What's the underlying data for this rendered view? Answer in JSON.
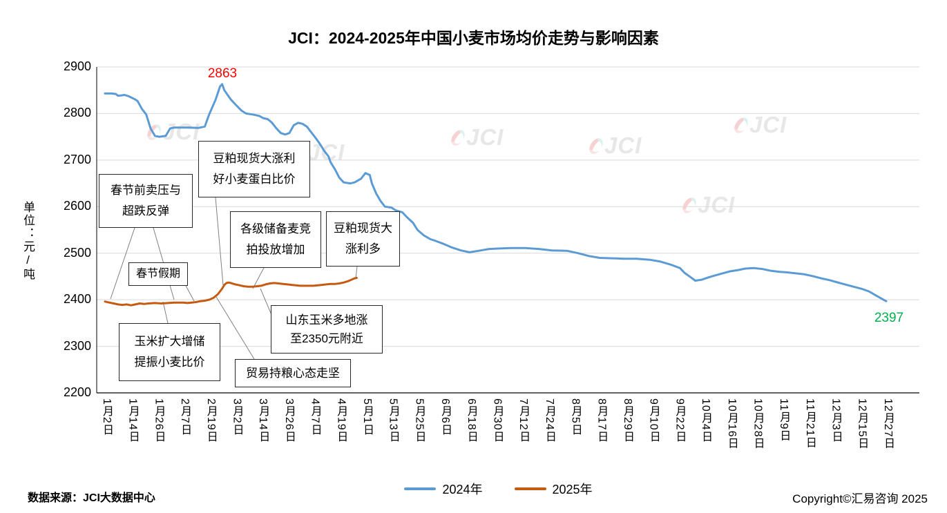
{
  "title": "JCI：2024-2025年中国小麦市场均价走势与影响因素",
  "y_axis_title": "单位：元/吨",
  "watermark_text": "JCI",
  "footer": {
    "source": "数据来源：JCI大数据中心",
    "copyright": "Copyright©汇易咨询 2025"
  },
  "legend": [
    {
      "label": "2024年",
      "color": "#5B9BD5"
    },
    {
      "label": "2025年",
      "color": "#C55A11"
    }
  ],
  "point_labels": [
    {
      "text": "2863",
      "color": "#FF0000"
    },
    {
      "text": "2397",
      "color": "#00B050"
    }
  ],
  "annotations": [
    {
      "line1": "春节前卖压与",
      "line2": "超跌反弹"
    },
    {
      "line1": "春节假期",
      "line2": ""
    },
    {
      "line1": "豆粕现货大涨利",
      "line2": "好小麦蛋白比价"
    },
    {
      "line1": "各级储备麦竞",
      "line2": "拍投放增加"
    },
    {
      "line1": "豆粕现货大",
      "line2": "涨利多"
    },
    {
      "line1": "玉米扩大增储",
      "line2": "提振小麦比价"
    },
    {
      "line1": "山东玉米多地涨",
      "line2": "至2350元附近"
    },
    {
      "line1": "贸易持粮心态走坚",
      "line2": ""
    }
  ],
  "chart_data": {
    "type": "line",
    "title": "JCI：2024-2025年中国小麦市场均价走势与影响因素",
    "xlabel": "",
    "ylabel": "单位：元/吨",
    "ylim": [
      2200,
      2900
    ],
    "ytick_step": 100,
    "grid": true,
    "legend_position": "bottom",
    "tick_day_interval": 12,
    "categories": [
      "1月2日",
      "1月14日",
      "1月26日",
      "2月7日",
      "2月19日",
      "3月2日",
      "3月14日",
      "3月26日",
      "4月7日",
      "4月19日",
      "5月1日",
      "5月13日",
      "5月25日",
      "6月6日",
      "6月18日",
      "6月30日",
      "7月12日",
      "7月24日",
      "8月5日",
      "8月17日",
      "8月29日",
      "9月10日",
      "9月22日",
      "10月4日",
      "10月16日",
      "10月28日",
      "11月9日",
      "11月21日",
      "12月3日",
      "12月15日",
      "12月27日"
    ],
    "series": [
      {
        "name": "2024年",
        "color": "#5B9BD5",
        "points": [
          [
            0,
            2843
          ],
          [
            3,
            2843
          ],
          [
            5,
            2842
          ],
          [
            6,
            2838
          ],
          [
            9,
            2840
          ],
          [
            11,
            2837
          ],
          [
            14,
            2830
          ],
          [
            15,
            2827
          ],
          [
            17,
            2810
          ],
          [
            19,
            2798
          ],
          [
            21,
            2768
          ],
          [
            23,
            2752
          ],
          [
            25,
            2750
          ],
          [
            28,
            2752
          ],
          [
            30,
            2768
          ],
          [
            32,
            2770
          ],
          [
            38,
            2770
          ],
          [
            43,
            2769
          ],
          [
            46,
            2772
          ],
          [
            48,
            2798
          ],
          [
            51,
            2830
          ],
          [
            53,
            2858
          ],
          [
            54,
            2863
          ],
          [
            55,
            2850
          ],
          [
            58,
            2830
          ],
          [
            60,
            2820
          ],
          [
            63,
            2806
          ],
          [
            65,
            2800
          ],
          [
            68,
            2798
          ],
          [
            71,
            2795
          ],
          [
            73,
            2790
          ],
          [
            75,
            2788
          ],
          [
            77,
            2780
          ],
          [
            79,
            2768
          ],
          [
            81,
            2758
          ],
          [
            83,
            2755
          ],
          [
            85,
            2758
          ],
          [
            87,
            2775
          ],
          [
            89,
            2780
          ],
          [
            91,
            2778
          ],
          [
            93,
            2772
          ],
          [
            95,
            2760
          ],
          [
            97,
            2748
          ],
          [
            99,
            2735
          ],
          [
            101,
            2720
          ],
          [
            103,
            2708
          ],
          [
            104,
            2695
          ],
          [
            106,
            2680
          ],
          [
            108,
            2662
          ],
          [
            110,
            2652
          ],
          [
            113,
            2650
          ],
          [
            115,
            2652
          ],
          [
            118,
            2660
          ],
          [
            120,
            2672
          ],
          [
            122,
            2668
          ],
          [
            123,
            2650
          ],
          [
            125,
            2628
          ],
          [
            127,
            2612
          ],
          [
            129,
            2600
          ],
          [
            132,
            2598
          ],
          [
            134,
            2592
          ],
          [
            137,
            2588
          ],
          [
            139,
            2578
          ],
          [
            142,
            2565
          ],
          [
            144,
            2550
          ],
          [
            147,
            2538
          ],
          [
            150,
            2530
          ],
          [
            152,
            2527
          ],
          [
            156,
            2520
          ],
          [
            160,
            2512
          ],
          [
            164,
            2506
          ],
          [
            168,
            2502
          ],
          [
            172,
            2505
          ],
          [
            177,
            2509
          ],
          [
            181,
            2510
          ],
          [
            187,
            2511
          ],
          [
            194,
            2511
          ],
          [
            200,
            2509
          ],
          [
            206,
            2506
          ],
          [
            213,
            2505
          ],
          [
            218,
            2500
          ],
          [
            223,
            2494
          ],
          [
            228,
            2490
          ],
          [
            234,
            2489
          ],
          [
            239,
            2488
          ],
          [
            245,
            2488
          ],
          [
            251,
            2486
          ],
          [
            256,
            2482
          ],
          [
            261,
            2475
          ],
          [
            265,
            2468
          ],
          [
            267,
            2458
          ],
          [
            270,
            2448
          ],
          [
            272,
            2441
          ],
          [
            275,
            2443
          ],
          [
            278,
            2448
          ],
          [
            281,
            2452
          ],
          [
            284,
            2456
          ],
          [
            288,
            2461
          ],
          [
            292,
            2464
          ],
          [
            295,
            2467
          ],
          [
            299,
            2468
          ],
          [
            303,
            2466
          ],
          [
            307,
            2462
          ],
          [
            311,
            2460
          ],
          [
            314,
            2459
          ],
          [
            318,
            2457
          ],
          [
            322,
            2455
          ],
          [
            326,
            2451
          ],
          [
            330,
            2446
          ],
          [
            334,
            2442
          ],
          [
            337,
            2438
          ],
          [
            341,
            2433
          ],
          [
            345,
            2428
          ],
          [
            349,
            2423
          ],
          [
            352,
            2418
          ],
          [
            355,
            2410
          ],
          [
            358,
            2402
          ],
          [
            360,
            2397
          ]
        ]
      },
      {
        "name": "2025年",
        "color": "#C55A11",
        "points": [
          [
            0,
            2396
          ],
          [
            2,
            2394
          ],
          [
            4,
            2392
          ],
          [
            6,
            2390
          ],
          [
            8,
            2389
          ],
          [
            10,
            2390
          ],
          [
            12,
            2388
          ],
          [
            14,
            2390
          ],
          [
            16,
            2392
          ],
          [
            18,
            2391
          ],
          [
            20,
            2392
          ],
          [
            23,
            2393
          ],
          [
            26,
            2392
          ],
          [
            29,
            2393
          ],
          [
            32,
            2394
          ],
          [
            36,
            2394
          ],
          [
            38,
            2393
          ],
          [
            40,
            2394
          ],
          [
            42,
            2395
          ],
          [
            44,
            2397
          ],
          [
            46,
            2398
          ],
          [
            48,
            2400
          ],
          [
            50,
            2404
          ],
          [
            52,
            2412
          ],
          [
            54,
            2424
          ],
          [
            55,
            2432
          ],
          [
            56,
            2436
          ],
          [
            57,
            2437
          ],
          [
            58,
            2436
          ],
          [
            60,
            2433
          ],
          [
            62,
            2431
          ],
          [
            64,
            2429
          ],
          [
            66,
            2428
          ],
          [
            68,
            2428
          ],
          [
            70,
            2429
          ],
          [
            72,
            2430
          ],
          [
            74,
            2433
          ],
          [
            76,
            2435
          ],
          [
            78,
            2436
          ],
          [
            80,
            2435
          ],
          [
            82,
            2434
          ],
          [
            84,
            2433
          ],
          [
            86,
            2432
          ],
          [
            88,
            2431
          ],
          [
            90,
            2430
          ],
          [
            94,
            2430
          ],
          [
            96,
            2430
          ],
          [
            98,
            2431
          ],
          [
            100,
            2432
          ],
          [
            102,
            2433
          ],
          [
            104,
            2434
          ],
          [
            106,
            2434
          ],
          [
            108,
            2435
          ],
          [
            110,
            2437
          ],
          [
            112,
            2440
          ],
          [
            114,
            2444
          ],
          [
            115,
            2446
          ],
          [
            116,
            2447
          ]
        ]
      }
    ],
    "annotations": [
      "春节前卖压与超跌反弹",
      "春节假期",
      "豆粕现货大涨利好小麦蛋白比价",
      "各级储备麦竞拍投放增加",
      "豆粕现货大涨利多",
      "玉米扩大增储提振小麦比价",
      "山东玉米多地涨至2350元附近",
      "贸易持粮心态走坚"
    ],
    "point_labels": [
      {
        "series": "2024年",
        "category": "2月底",
        "value": 2863
      },
      {
        "series": "2024年",
        "category": "12月27日",
        "value": 2397
      }
    ]
  }
}
